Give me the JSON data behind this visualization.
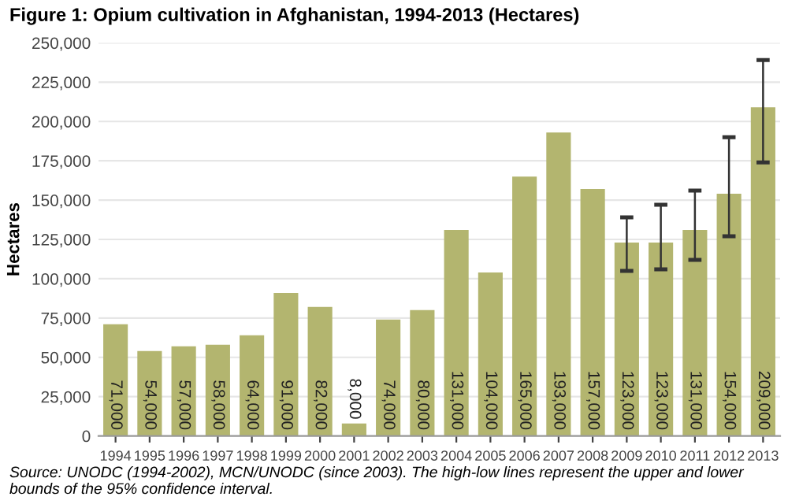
{
  "chart_data": {
    "type": "bar",
    "title": "Figure 1: Opium cultivation in Afghanistan, 1994-2013 (Hectares)",
    "ylabel": "Hectares",
    "categories": [
      "1994",
      "1995",
      "1996",
      "1997",
      "1998",
      "1999",
      "2000",
      "2001",
      "2002",
      "2003",
      "2004",
      "2005",
      "2006",
      "2007",
      "2008",
      "2009",
      "2010",
      "2011",
      "2012",
      "2013"
    ],
    "values": [
      71000,
      54000,
      57000,
      58000,
      64000,
      91000,
      82000,
      8000,
      74000,
      80000,
      131000,
      104000,
      165000,
      193000,
      157000,
      123000,
      123000,
      131000,
      154000,
      209000
    ],
    "errors": [
      null,
      null,
      null,
      null,
      null,
      null,
      null,
      null,
      null,
      null,
      null,
      null,
      null,
      null,
      null,
      [
        105000,
        139000
      ],
      [
        106000,
        147000
      ],
      [
        112000,
        156000
      ],
      [
        127000,
        190000
      ],
      [
        174000,
        239000
      ]
    ],
    "color": "#b3b56f",
    "value_labels": [
      "71,000",
      "54,000",
      "57,000",
      "58,000",
      "64,000",
      "91,000",
      "82,000",
      "8,000",
      "74,000",
      "80,000",
      "131,000",
      "104,000",
      "165,000",
      "193,000",
      "157,000",
      "123,000",
      "123,000",
      "131,000",
      "154,000",
      "209,000"
    ],
    "ylim": [
      0,
      250000
    ],
    "yticks": [
      {
        "value": 0,
        "label": "0"
      },
      {
        "value": 25000,
        "label": "25,000"
      },
      {
        "value": 50000,
        "label": "50,000"
      },
      {
        "value": 75000,
        "label": "75,000"
      },
      {
        "value": 100000,
        "label": "100,000"
      },
      {
        "value": 125000,
        "label": "125,000"
      },
      {
        "value": 150000,
        "label": "150,000"
      },
      {
        "value": 175000,
        "label": "175,000"
      },
      {
        "value": 200000,
        "label": "200,000"
      },
      {
        "value": 225000,
        "label": "225,000"
      },
      {
        "value": 250000,
        "label": "250,000"
      }
    ],
    "grid": "y",
    "annotations": [
      "Source: UNODC (1994-2002), MCN/UNODC (since 2003). The high-low lines represent the upper and lower bounds of the 95% confidence interval."
    ]
  }
}
